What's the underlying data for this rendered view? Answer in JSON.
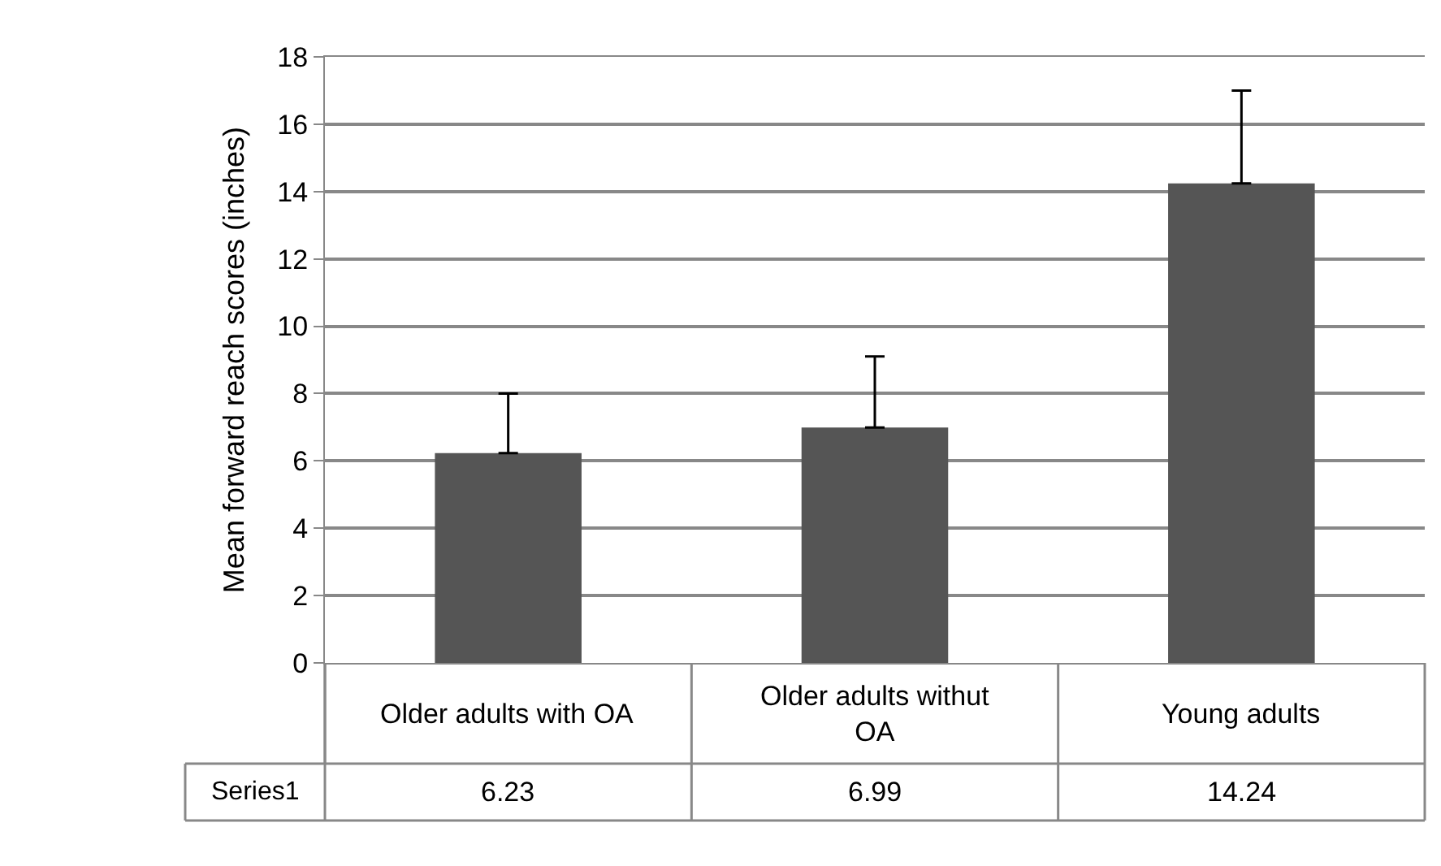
{
  "chart_data": {
    "type": "bar",
    "ylabel": "Mean forward reach scores (inches)",
    "categories": [
      "Older adults with OA",
      "Older adults withut OA",
      "Young adults"
    ],
    "series": [
      {
        "name": "Series1",
        "color": "#555555",
        "values": [
          6.23,
          6.99,
          14.24
        ],
        "errors": [
          [
            6.23,
            8.0
          ],
          [
            6.99,
            9.1
          ],
          [
            14.24,
            17.0
          ]
        ]
      }
    ],
    "ylim": [
      0,
      18
    ],
    "yticks": [
      0,
      2,
      4,
      6,
      8,
      10,
      12,
      14,
      16,
      18
    ],
    "grid": "y",
    "data_labels": true,
    "legend": false
  }
}
